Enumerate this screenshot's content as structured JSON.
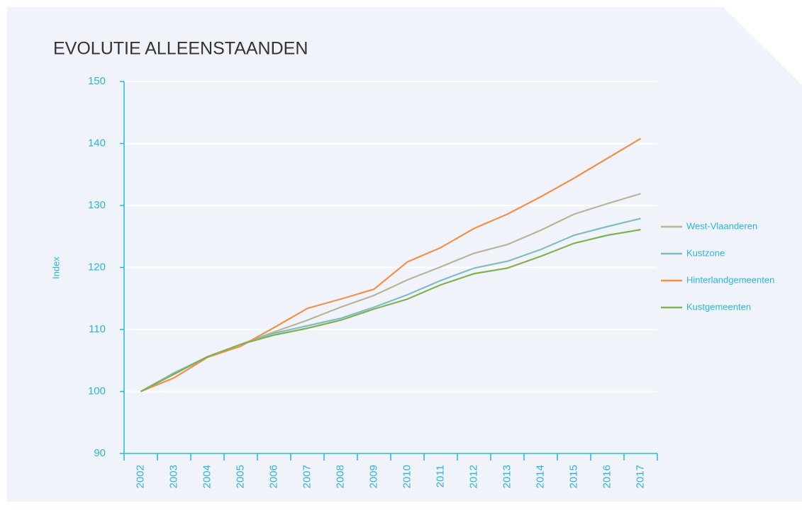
{
  "chart_data": {
    "type": "line",
    "title": "EVOLUTIE ALLEENSTAANDEN",
    "y_label": "Index",
    "categories": [
      "2002",
      "2003",
      "2004",
      "2005",
      "2006",
      "2007",
      "2008",
      "2009",
      "2010",
      "2011",
      "2012",
      "2013",
      "2014",
      "2015",
      "2016",
      "2017"
    ],
    "series": [
      {
        "name": "West-Vlaanderen",
        "color": "#b9b397",
        "values": [
          100,
          102.8,
          105.6,
          107.6,
          109.6,
          111.5,
          113.6,
          115.5,
          118,
          120.1,
          122.3,
          123.7,
          126,
          128.6,
          130.3,
          131.9
        ]
      },
      {
        "name": "Kustzone",
        "color": "#80bcc6",
        "values": [
          100,
          103,
          105.6,
          107.6,
          109.4,
          110.6,
          111.8,
          113.6,
          115.6,
          117.9,
          119.9,
          121,
          122.9,
          125.2,
          126.6,
          127.9
        ]
      },
      {
        "name": "Hinterlandgemeenten",
        "color": "#f0924a",
        "values": [
          100,
          102.2,
          105.5,
          107.3,
          110.3,
          113.4,
          114.9,
          116.5,
          120.9,
          123.2,
          126.3,
          128.6,
          131.4,
          134.4,
          137.6,
          140.8
        ]
      },
      {
        "name": "Kustgemeenten",
        "color": "#82b150",
        "values": [
          100,
          102.8,
          105.6,
          107.6,
          109.1,
          110.2,
          111.5,
          113.3,
          114.9,
          117.2,
          119,
          119.9,
          121.8,
          123.9,
          125.2,
          126.1
        ]
      }
    ],
    "ylim": [
      90,
      150
    ],
    "yticks": [
      90,
      100,
      110,
      120,
      130,
      140,
      150
    ],
    "grid": true,
    "legend": "right"
  }
}
